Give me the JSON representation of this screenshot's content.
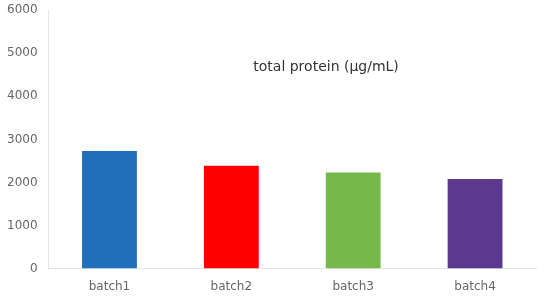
{
  "chart_data": {
    "type": "bar",
    "categories": [
      "batch1",
      "batch2",
      "batch3",
      "batch4"
    ],
    "values": [
      2730,
      2390,
      2230,
      2080
    ],
    "colors": [
      "#1f6fba",
      "#ff0000",
      "#77b84a",
      "#5b3a8e"
    ],
    "annotation": "total protein (μg/mL)",
    "ylim": [
      0,
      6000
    ],
    "yticks": [
      0,
      1000,
      2000,
      3000,
      4000,
      5000,
      6000
    ],
    "grid": false
  }
}
